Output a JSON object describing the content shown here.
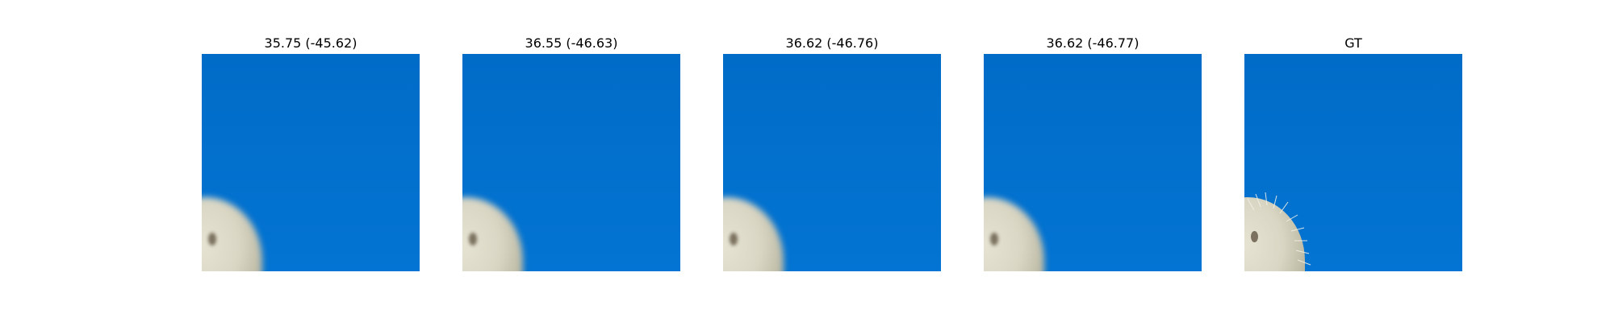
{
  "panels": [
    {
      "title": "35.75 (-45.62)",
      "kind": "prediction"
    },
    {
      "title": "36.55 (-46.63)",
      "kind": "prediction"
    },
    {
      "title": "36.62 (-46.76)",
      "kind": "prediction"
    },
    {
      "title": "36.62 (-46.77)",
      "kind": "prediction"
    },
    {
      "title": "GT",
      "kind": "ground-truth"
    }
  ],
  "colors": {
    "sky": "#0270cd",
    "cactus": "#d9d6c4",
    "background": "#ffffff"
  }
}
